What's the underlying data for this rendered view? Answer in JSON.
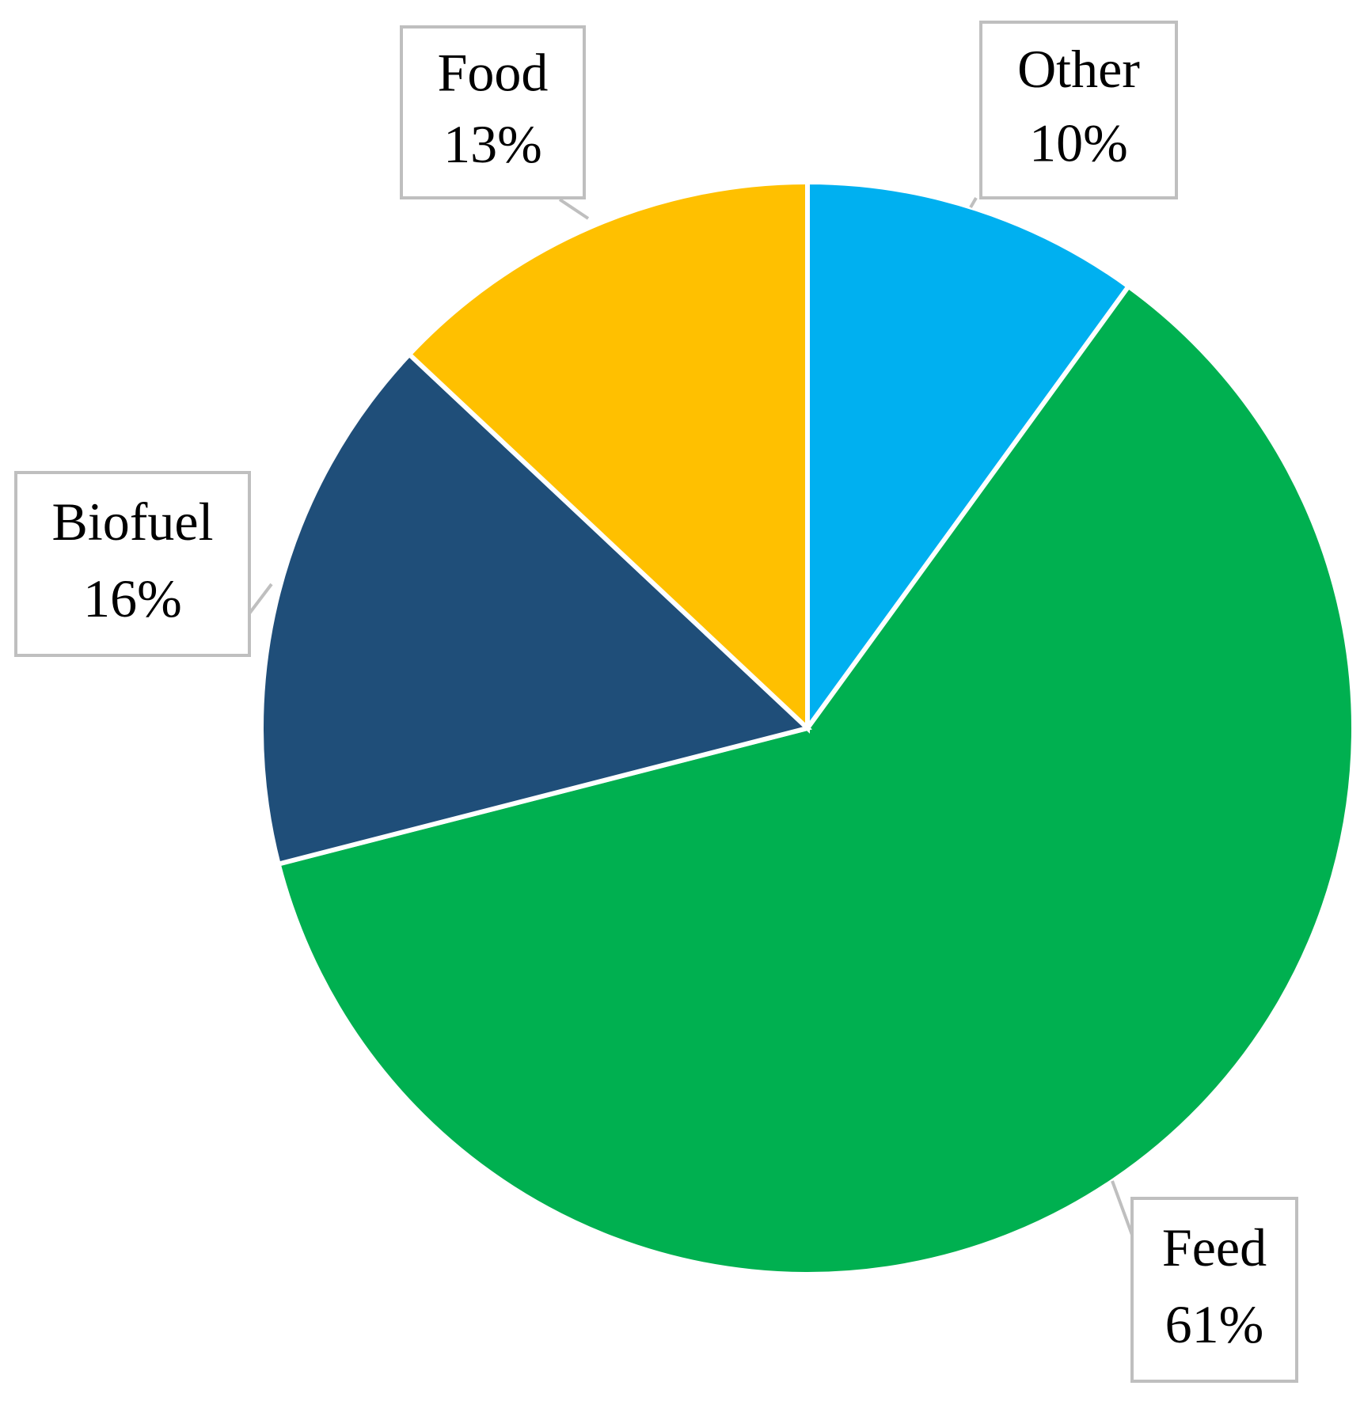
{
  "chart_data": {
    "type": "pie",
    "categories": [
      "Other",
      "Feed",
      "Biofuel",
      "Food"
    ],
    "values": [
      10,
      61,
      16,
      13
    ],
    "value_labels": [
      "10%",
      "61%",
      "16%",
      "13%"
    ],
    "colors": [
      "#00b0f0",
      "#00b050",
      "#1f4e79",
      "#ffc000"
    ]
  }
}
